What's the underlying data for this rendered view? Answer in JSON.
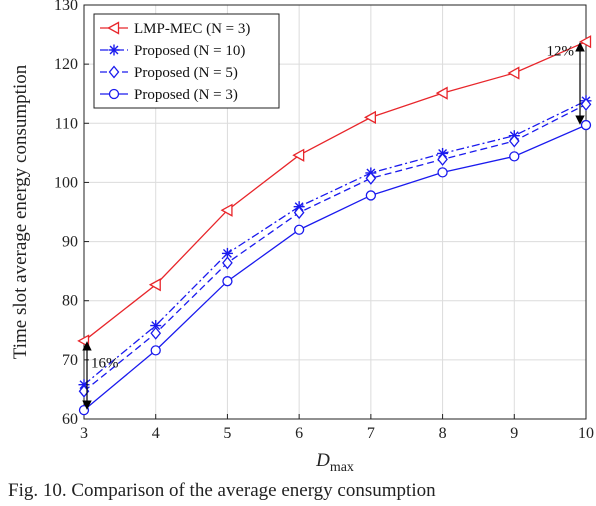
{
  "chart_data": {
    "type": "line",
    "title": "",
    "xlabel": "D",
    "xlabel_sub": "max",
    "ylabel": "Time slot average energy consumption",
    "x": [
      3,
      4,
      5,
      6,
      7,
      8,
      9,
      10
    ],
    "xlim": [
      3,
      10
    ],
    "ylim": [
      60,
      130
    ],
    "xticks": [
      3,
      4,
      5,
      6,
      7,
      8,
      9,
      10
    ],
    "yticks": [
      60,
      70,
      80,
      90,
      100,
      110,
      120,
      130
    ],
    "grid": true,
    "legend_position": "top-left",
    "series": [
      {
        "name": "LMP-MEC (N = 3)",
        "color": "#e8262b",
        "marker": "triangle-left",
        "dash": "solid",
        "values": [
          73.2,
          82.7,
          95.3,
          104.6,
          111.0,
          115.1,
          118.5,
          123.8
        ]
      },
      {
        "name": "Proposed (N = 10)",
        "color": "#1a1aee",
        "marker": "asterisk",
        "dash": "dashdot",
        "values": [
          65.8,
          75.8,
          88.0,
          95.9,
          101.6,
          104.9,
          107.9,
          113.8
        ]
      },
      {
        "name": "Proposed (N = 5)",
        "color": "#1a1aee",
        "marker": "diamond",
        "dash": "dashed",
        "values": [
          64.7,
          74.5,
          86.4,
          94.9,
          100.7,
          103.9,
          107.0,
          113.2
        ]
      },
      {
        "name": "Proposed (N = 3)",
        "color": "#1a1aee",
        "marker": "circle",
        "dash": "solid",
        "values": [
          61.5,
          71.6,
          83.3,
          92.0,
          97.8,
          101.7,
          104.4,
          109.7
        ]
      }
    ],
    "annotations": [
      {
        "text": "16%",
        "x": 3,
        "y_top": 73.2,
        "y_bottom": 61.5
      },
      {
        "text": "12%",
        "x": 10,
        "y_top": 123.8,
        "y_bottom": 109.7
      }
    ]
  },
  "caption": "Fig. 10.   Comparison of the average energy consumption"
}
